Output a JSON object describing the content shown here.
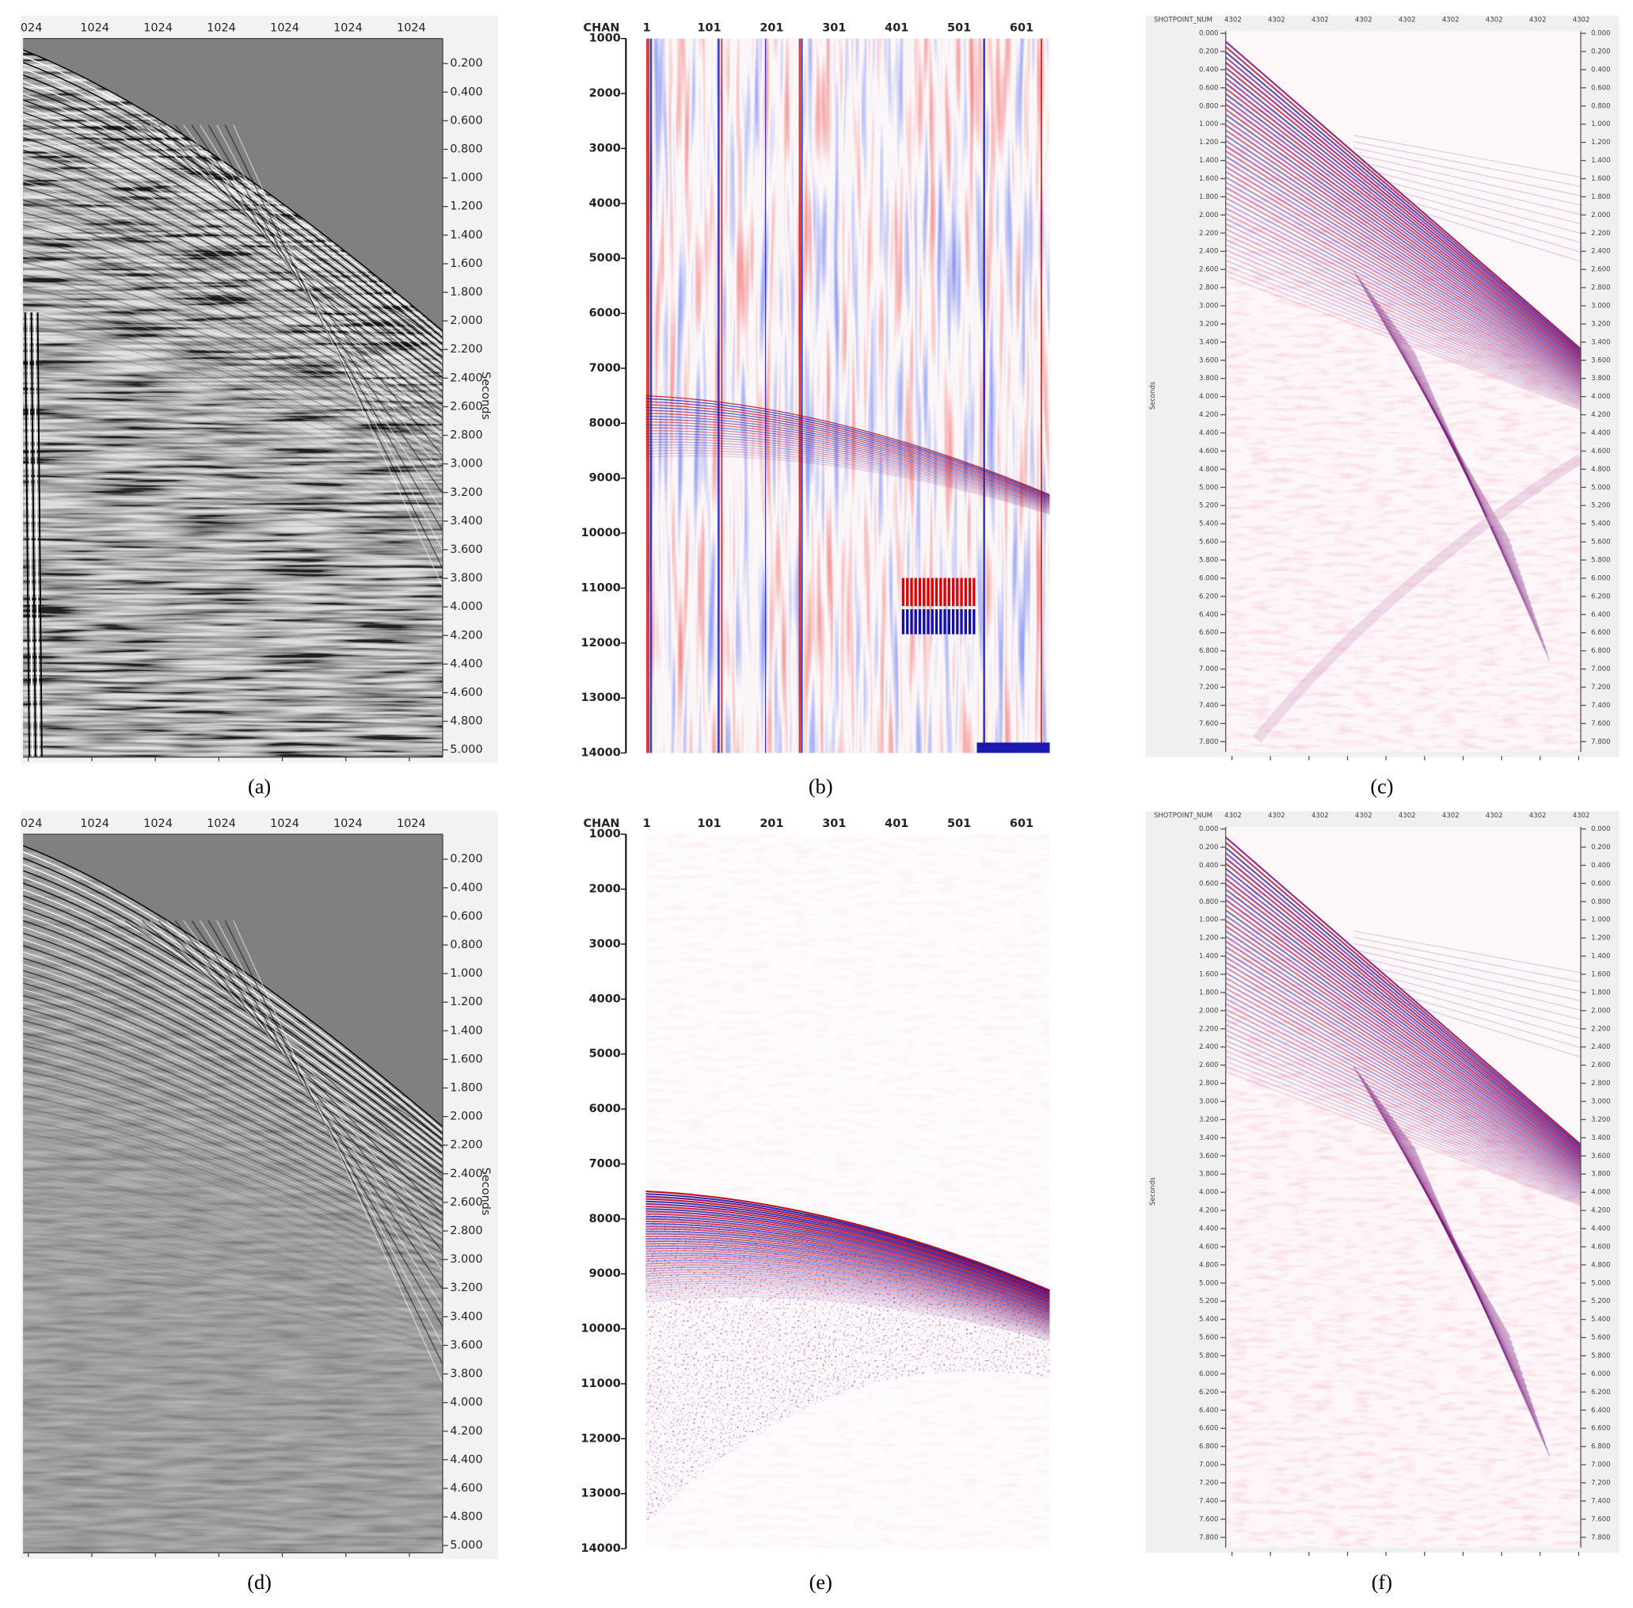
{
  "panels": [
    {
      "caption": "(a)",
      "top_labels": [
        "024",
        "1024",
        "1024",
        "1024",
        "1024",
        "1024",
        "1024"
      ],
      "right_ticks": [
        "0.200",
        "0.400",
        "0.600",
        "0.800",
        "1.000",
        "1.200",
        "1.400",
        "1.600",
        "1.800",
        "2.000",
        "2.200",
        "2.400",
        "2.600",
        "2.800",
        "3.000",
        "3.200",
        "3.400",
        "3.600",
        "3.800",
        "4.000",
        "4.200",
        "4.400",
        "4.600",
        "4.800",
        "5.000"
      ],
      "axis_label": "Seconds"
    },
    {
      "caption": "(b)",
      "axis_title": "CHAN",
      "top_labels": [
        "1",
        "101",
        "201",
        "301",
        "401",
        "501",
        "601"
      ],
      "left_ticks": [
        "1000",
        "2000",
        "3000",
        "4000",
        "5000",
        "6000",
        "7000",
        "8000",
        "9000",
        "10000",
        "11000",
        "12000",
        "13000",
        "14000"
      ]
    },
    {
      "caption": "(c)",
      "axis_title": "SHOTPOINT_NUM",
      "top_labels": [
        "4302",
        "4302",
        "4302",
        "4302",
        "4302",
        "4302",
        "4302",
        "4302",
        "4302"
      ],
      "left_ticks": [
        "0.000",
        "0.200",
        "0.400",
        "0.600",
        "0.800",
        "1.000",
        "1.200",
        "1.400",
        "1.600",
        "1.800",
        "2.000",
        "2.200",
        "2.400",
        "2.600",
        "2.800",
        "3.000",
        "3.200",
        "3.400",
        "3.600",
        "3.800",
        "4.000",
        "4.200",
        "4.400",
        "4.600",
        "4.800",
        "5.000",
        "5.200",
        "5.400",
        "5.600",
        "5.800",
        "6.000",
        "6.200",
        "6.400",
        "6.600",
        "6.800",
        "7.000",
        "7.200",
        "7.400",
        "7.600",
        "7.800"
      ],
      "right_ticks": [
        "0.000",
        "0.200",
        "0.400",
        "0.600",
        "0.800",
        "1.000",
        "1.200",
        "1.400",
        "1.600",
        "1.800",
        "2.000",
        "2.200",
        "2.400",
        "2.600",
        "2.800",
        "3.000",
        "3.200",
        "3.400",
        "3.600",
        "3.800",
        "4.000",
        "4.200",
        "4.400",
        "4.600",
        "4.800",
        "5.000",
        "5.200",
        "5.400",
        "5.600",
        "5.800",
        "6.000",
        "6.200",
        "6.400",
        "6.600",
        "6.800",
        "7.000",
        "7.200",
        "7.400",
        "7.600",
        "7.800"
      ],
      "axis_label": "Seconds"
    },
    {
      "caption": "(d)",
      "top_labels": [
        "024",
        "1024",
        "1024",
        "1024",
        "1024",
        "1024",
        "1024"
      ],
      "right_ticks": [
        "0.200",
        "0.400",
        "0.600",
        "0.800",
        "1.000",
        "1.200",
        "1.400",
        "1.600",
        "1.800",
        "2.000",
        "2.200",
        "2.400",
        "2.600",
        "2.800",
        "3.000",
        "3.200",
        "3.400",
        "3.600",
        "3.800",
        "4.000",
        "4.200",
        "4.400",
        "4.600",
        "4.800",
        "5.000"
      ],
      "axis_label": "Seconds"
    },
    {
      "caption": "(e)",
      "axis_title": "CHAN",
      "top_labels": [
        "1",
        "101",
        "201",
        "301",
        "401",
        "501",
        "601"
      ],
      "left_ticks": [
        "1000",
        "2000",
        "3000",
        "4000",
        "5000",
        "6000",
        "7000",
        "8000",
        "9000",
        "10000",
        "11000",
        "12000",
        "13000",
        "14000"
      ]
    },
    {
      "caption": "(f)",
      "axis_title": "SHOTPOINT_NUM",
      "top_labels": [
        "4302",
        "4302",
        "4302",
        "4302",
        "4302",
        "4302",
        "4302",
        "4302",
        "4302"
      ],
      "left_ticks": [
        "0.000",
        "0.200",
        "0.400",
        "0.600",
        "0.800",
        "1.000",
        "1.200",
        "1.400",
        "1.600",
        "1.800",
        "2.000",
        "2.200",
        "2.400",
        "2.600",
        "2.800",
        "3.000",
        "3.200",
        "3.400",
        "3.600",
        "3.800",
        "4.000",
        "4.200",
        "4.400",
        "4.600",
        "4.800",
        "5.000",
        "5.200",
        "5.400",
        "5.600",
        "5.800",
        "6.000",
        "6.200",
        "6.400",
        "6.600",
        "6.800",
        "7.000",
        "7.200",
        "7.400",
        "7.600",
        "7.800"
      ],
      "right_ticks": [
        "0.000",
        "0.200",
        "0.400",
        "0.600",
        "0.800",
        "1.000",
        "1.200",
        "1.400",
        "1.600",
        "1.800",
        "2.000",
        "2.200",
        "2.400",
        "2.600",
        "2.800",
        "3.000",
        "3.200",
        "3.400",
        "3.600",
        "3.800",
        "4.000",
        "4.200",
        "4.400",
        "4.600",
        "4.800",
        "5.000",
        "5.200",
        "5.400",
        "5.600",
        "5.800",
        "6.000",
        "6.200",
        "6.400",
        "6.600",
        "6.800",
        "7.000",
        "7.200",
        "7.400",
        "7.600",
        "7.800"
      ],
      "axis_label": "Seconds"
    }
  ]
}
